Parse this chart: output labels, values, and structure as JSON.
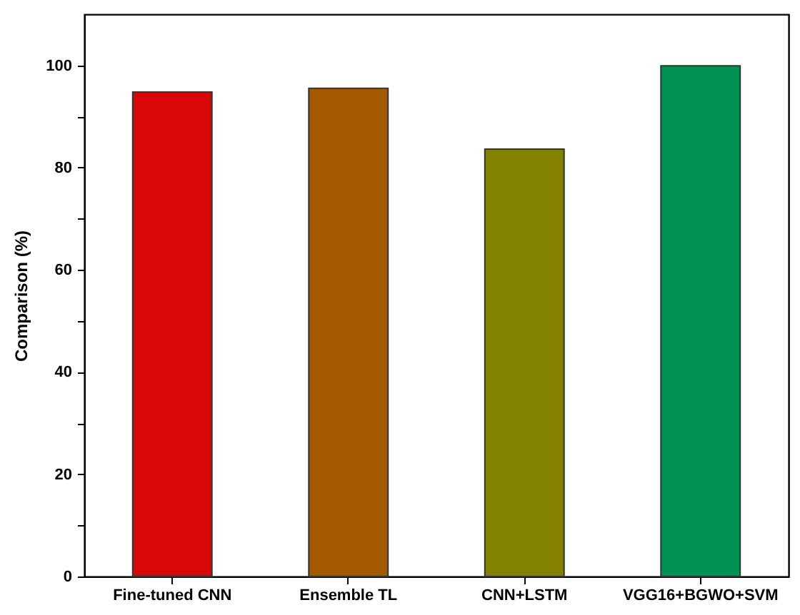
{
  "chart_data": {
    "type": "bar",
    "ylabel": "Comparison (%)",
    "categories": [
      "Fine-tuned CNN",
      "Ensemble TL",
      "CNN+LSTM",
      "VGG16+BGWO+SVM"
    ],
    "values": [
      94.8,
      95.5,
      83.6,
      99.9
    ],
    "colors": [
      "#d80808",
      "#a45800",
      "#828200",
      "#009250"
    ],
    "ylim": [
      0,
      110
    ],
    "yticks": [
      0,
      {
        "value": 10,
        "label": null
      },
      20,
      {
        "value": 30,
        "label": null
      },
      40,
      {
        "value": 50,
        "label": null
      },
      60,
      {
        "value": 70,
        "label": null
      },
      80,
      {
        "value": 90,
        "label": null
      },
      100
    ],
    "grid": false
  }
}
